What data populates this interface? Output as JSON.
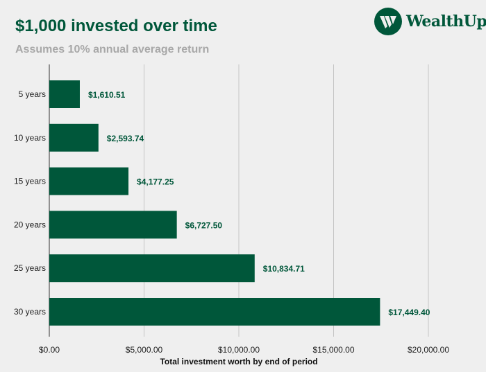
{
  "brand": {
    "name": "WealthUp",
    "color": "#00573a"
  },
  "chart_data": {
    "type": "bar",
    "orientation": "horizontal",
    "title": "$1,000 invested over time",
    "subtitle": "Assumes 10% annual average return",
    "categories": [
      "5 years",
      "10 years",
      "15 years",
      "20 years",
      "25 years",
      "30 years"
    ],
    "values": [
      1610.51,
      2593.74,
      4177.25,
      6727.5,
      10834.71,
      17449.4
    ],
    "data_labels": [
      "$1,610.51",
      "$2,593.74",
      "$4,177.25",
      "$6,727.50",
      "$10,834.71",
      "$17,449.40"
    ],
    "xlabel": "Total investment worth by end of period",
    "ylabel": "",
    "xlim": [
      0,
      20000
    ],
    "xticks": [
      0,
      5000,
      10000,
      15000,
      20000
    ],
    "xtick_labels": [
      "$0.00",
      "$5,000.00",
      "$10,000.00",
      "$15,000.00",
      "$20,000.00"
    ],
    "grid": "vertical",
    "bar_color": "#00573a",
    "legend": "none"
  }
}
